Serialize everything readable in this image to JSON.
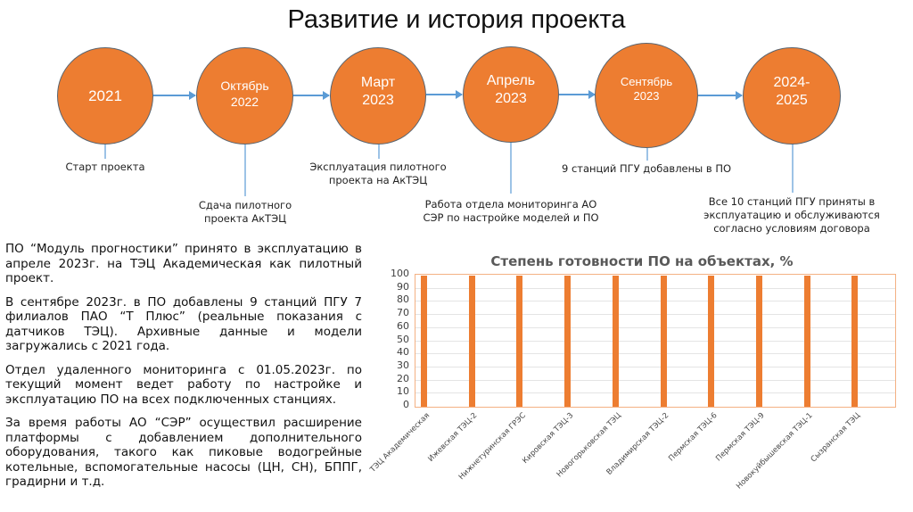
{
  "slide": {
    "title": "Развитие и история проекта"
  },
  "timeline": {
    "nodes": [
      {
        "label": "2021",
        "caption": "Старт проекта"
      },
      {
        "label": "Октябрь\n2022",
        "caption": "Сдача пилотного\nпроекта АкТЭЦ"
      },
      {
        "label": "Март\n2023",
        "caption": "Эксплуатация пилотного\nпроекта на АкТЭЦ"
      },
      {
        "label": "Апрель\n2023",
        "caption": "Работа отдела мониторинга АО\nСЭР по настройке моделей и ПО"
      },
      {
        "label": "Сентябрь\n2023",
        "caption": "9 станций ПГУ добавлены в ПО"
      },
      {
        "label": "2024-\n2025",
        "caption": "Все 10 станций ПГУ приняты в\nэксплуатацию и обслуживаются\nсогласно условиям договора"
      }
    ],
    "colors": {
      "node_fill": "#ed7d31",
      "node_border": "#5a6570",
      "arrow": "#5b9bd5",
      "stem": "#9dc3e6"
    }
  },
  "body": {
    "paragraphs": [
      "ПО “Модуль прогностики” принято в эксплуатацию в апреле 2023г. на ТЭЦ Академическая как пилотный проект.",
      "В сентябре 2023г. в ПО добавлены 9 станций ПГУ 7 филиалов ПАО “Т Плюс” (реальные показания с датчиков ТЭЦ). Архивные данные и модели загружались с 2021 года.",
      "Отдел удаленного мониторинга с 01.05.2023г. по текущий момент ведет работу по настройке и эксплуатацию ПО на всех подключенных станциях.",
      "За время работы АО “СЭР” осуществил расширение платформы с добавлением дополнительного оборудования, такого как пиковые водогрейные котельные, вспомогательные насосы (ЦН, СН), БППГ, градирни и т.д."
    ]
  },
  "chart_data": {
    "type": "bar",
    "title": "Степень готовности ПО на объектах, %",
    "xlabel": "",
    "ylabel": "",
    "ylim": [
      0,
      100
    ],
    "yticks": [
      0,
      10,
      20,
      30,
      40,
      50,
      60,
      70,
      80,
      90,
      100
    ],
    "grid": true,
    "legend": "none",
    "bar_color": "#ed7d31",
    "categories": [
      "ТЭЦ Академическая",
      "Ижевская ТЭЦ-2",
      "Нижнетуринская ГРЭС",
      "Кировская ТЭЦ-3",
      "Новогорьковская ТЭЦ",
      "Владимирская ТЭЦ-2",
      "Пермская ТЭЦ-6",
      "Пермская ТЭЦ-9",
      "Новокуйбышевская ТЭЦ-1",
      "Сызранская ТЭЦ"
    ],
    "values": [
      100,
      100,
      100,
      100,
      100,
      100,
      100,
      100,
      100,
      100
    ]
  }
}
